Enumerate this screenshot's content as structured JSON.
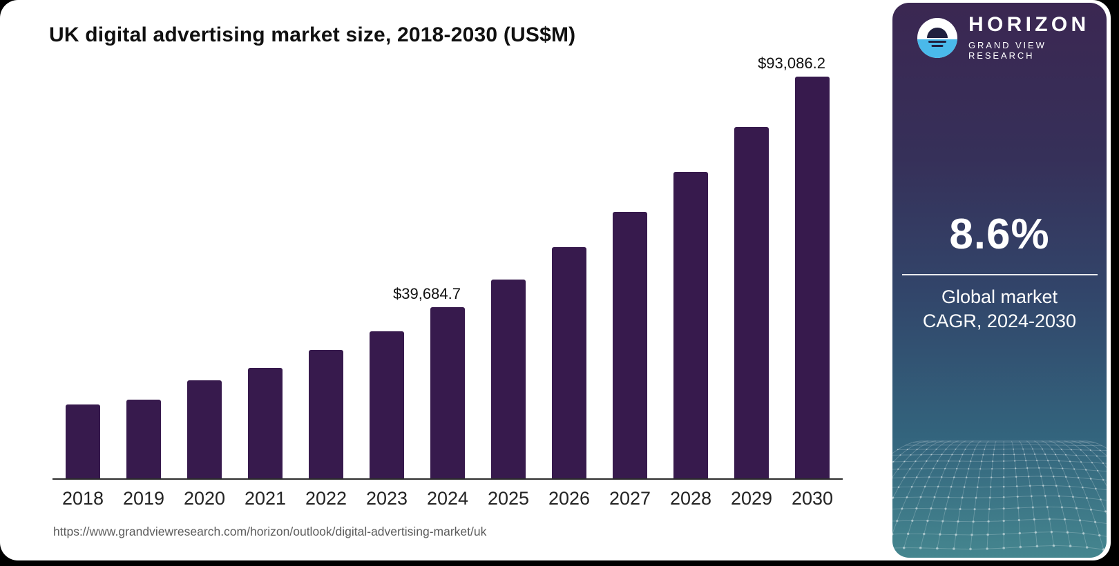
{
  "chart": {
    "title": "UK digital advertising market size, 2018-2030 (US$M)"
  },
  "footer": {
    "source_url": "https://www.grandviewresearch.com/horizon/outlook/digital-advertising-market/uk"
  },
  "sidebar": {
    "brand": {
      "name": "HORIZON",
      "subtitle": "GRAND VIEW RESEARCH",
      "logo_icon": "horizon-sunrise-logo"
    },
    "stat": {
      "value": "8.6%",
      "label_line1": "Global market",
      "label_line2": "CAGR, 2024-2030"
    }
  },
  "colors": {
    "page_bg": "#000000",
    "card_bg": "#ffffff",
    "bar": "#371a4d",
    "title_text": "#101010",
    "axis_line": "#2b2b2b",
    "year_label": "#242424",
    "value_label": "#101010",
    "url_text": "#5c5c5c",
    "sidebar_text": "#ffffff",
    "sidebar_gradient_top": "#3b2752",
    "sidebar_gradient_upper_mid": "#363059",
    "sidebar_gradient_mid": "#32456a",
    "sidebar_gradient_lower": "#33647d",
    "sidebar_gradient_bottom": "#45868f",
    "logo_blue": "#4ab9ea",
    "logo_dark": "#20203f",
    "mesh_line": "rgba(255,255,255,0.22)",
    "mesh_dot": "rgba(255,255,255,0.45)"
  },
  "chart_data": {
    "type": "bar",
    "title": "UK digital advertising market size, 2018-2030 (US$M)",
    "unit": "US$M",
    "categories": [
      "2018",
      "2019",
      "2020",
      "2021",
      "2022",
      "2023",
      "2024",
      "2025",
      "2026",
      "2027",
      "2028",
      "2029",
      "2030"
    ],
    "values": [
      17100,
      18200,
      22700,
      25600,
      29700,
      34100,
      39684.7,
      46000,
      53600,
      61700,
      71000,
      81400,
      93086.2
    ],
    "values_note": "Only 2024 and 2030 carry printed data labels; remaining values estimated from bar heights",
    "data_labels": [
      {
        "category": "2024",
        "text": "$39,684.7"
      },
      {
        "category": "2030",
        "text": "$93,086.2"
      }
    ],
    "xlabel": "",
    "ylabel": "",
    "ylim": [
      0,
      93086.2
    ],
    "grid": false,
    "legend": false,
    "bar_color": "#371a4d"
  }
}
